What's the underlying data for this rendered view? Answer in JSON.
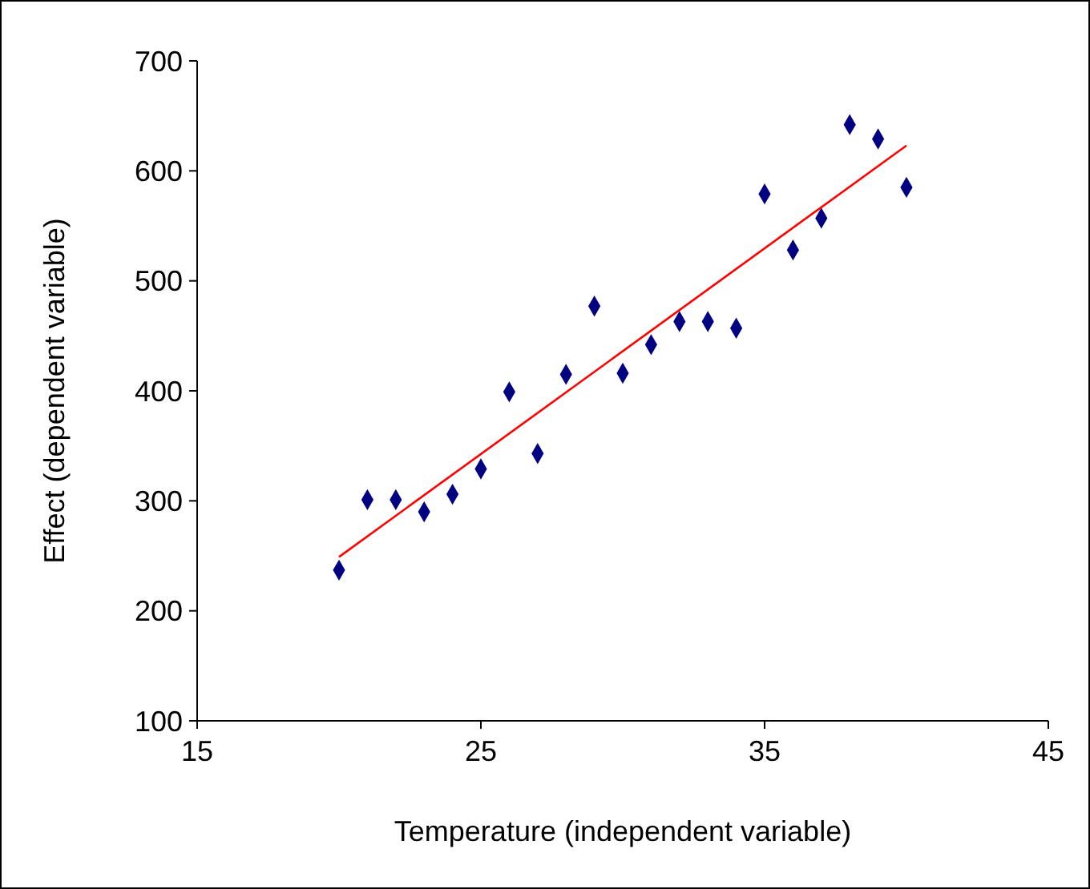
{
  "chart_data": {
    "type": "scatter",
    "xlabel": "Temperature (independent variable)",
    "ylabel": "Effect (dependent variable)",
    "x": [
      20,
      21,
      22,
      23,
      24,
      25,
      26,
      27,
      28,
      29,
      30,
      31,
      32,
      33,
      34,
      35,
      36,
      37,
      38,
      39,
      40
    ],
    "series": [
      {
        "color": "#000080",
        "marker": "diamond",
        "values": [
          237,
          301,
          301,
          290,
          306,
          329,
          399,
          343,
          415,
          477,
          416,
          442,
          463,
          463,
          457,
          579,
          528,
          557,
          642,
          629,
          585
        ]
      },
      {
        "type": "line",
        "color": "#ff0000",
        "x": [
          20,
          40
        ],
        "values": [
          249,
          623
        ]
      }
    ],
    "xlim": [
      15,
      45
    ],
    "xticks": [
      15,
      25,
      35,
      45
    ],
    "ylim": [
      100,
      700
    ],
    "yticks": [
      100,
      200,
      300,
      400,
      500,
      600,
      700
    ],
    "grid": false
  }
}
